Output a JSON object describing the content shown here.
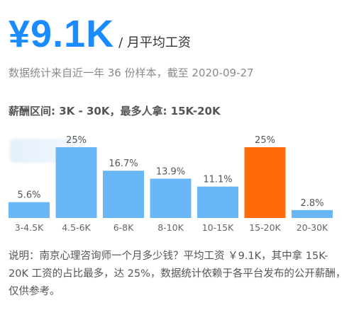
{
  "header": {
    "salary_value": "¥9.1K",
    "salary_unit": "/ 月平均工资",
    "accent_color": "#1a8cff"
  },
  "sample_note": "数据统计来自近一年 36 份样本，截至 2020-09-27",
  "range_line": "薪酬区间: 3K - 30K，最多人拿: 15K-20K",
  "chart_data": {
    "type": "bar",
    "title": "",
    "xlabel": "",
    "ylabel": "",
    "ylim": [
      0,
      25
    ],
    "grid": false,
    "categories": [
      "3-4.5K",
      "4.5-6K",
      "6-8K",
      "8-10K",
      "10-15K",
      "15-20K",
      "20-30K"
    ],
    "values": [
      5.6,
      25,
      16.7,
      13.9,
      11.1,
      25,
      2.8
    ],
    "value_labels": [
      "5.6%",
      "25%",
      "16.7%",
      "13.9%",
      "11.1%",
      "25%",
      "2.8%"
    ],
    "highlight_index": 5,
    "bar_color": "#6ab7f7",
    "highlight_color": "#ff6b0a"
  },
  "footnote": "说明：南京心理咨询师一个月多少钱？平均工资 ￥9.1K，其中拿 15K-20K 工资的占比最多，达 25%，数据统计依赖于各平台发布的公开薪酬，仅供参考。"
}
